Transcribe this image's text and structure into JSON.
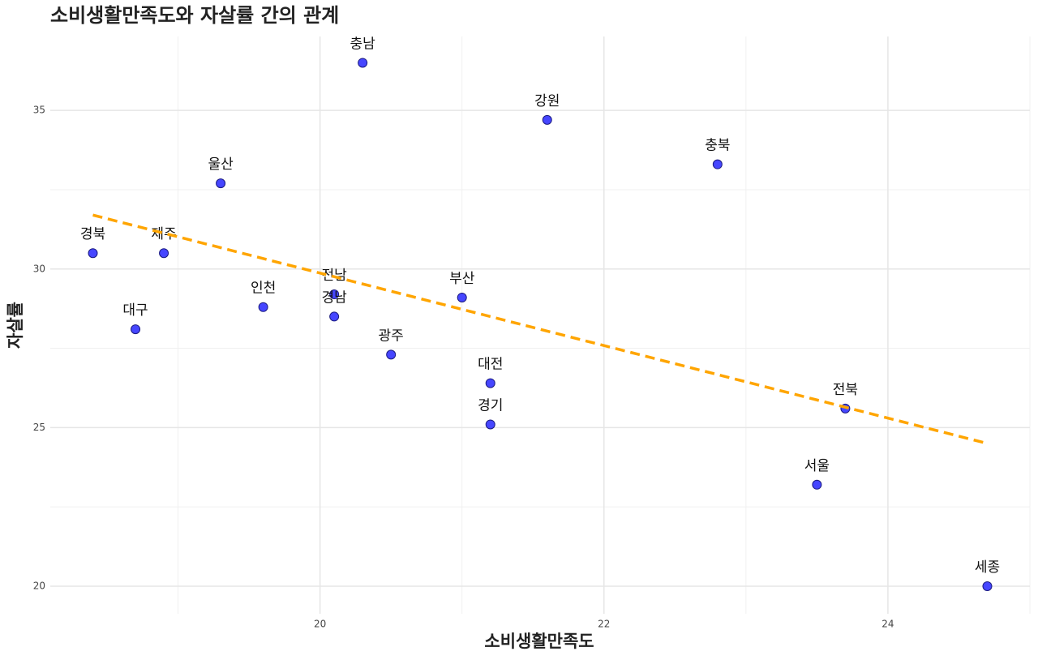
{
  "chart_data": {
    "type": "scatter",
    "title": "소비생활만족도와 자살률 간의 관계",
    "x_label": "소비생활만족도",
    "y_label": "자살률",
    "point_labels": [
      "경북",
      "대구",
      "제주",
      "울산",
      "인천",
      "충남",
      "전남",
      "경남",
      "광주",
      "부산",
      "대전",
      "경기",
      "강원",
      "충북",
      "전북",
      "서울",
      "세종"
    ],
    "x": [
      18.4,
      18.7,
      18.9,
      19.3,
      19.6,
      20.3,
      20.1,
      20.1,
      20.5,
      21.0,
      21.2,
      21.2,
      21.6,
      22.8,
      23.7,
      23.5,
      24.7
    ],
    "values": [
      30.5,
      28.1,
      30.5,
      32.7,
      28.8,
      36.5,
      29.2,
      28.5,
      27.3,
      29.1,
      26.4,
      25.1,
      34.7,
      33.3,
      25.6,
      23.2,
      20.0
    ],
    "color": "#4646ff",
    "trend": {
      "x": [
        18.4,
        24.7
      ],
      "y": [
        31.7,
        24.5
      ],
      "color": "#ffa500"
    },
    "xlim": [
      18.1,
      25.0
    ],
    "ylim": [
      19.13,
      37.33
    ],
    "xticks": [
      20,
      22,
      24
    ],
    "yticks": [
      20,
      25,
      30,
      35
    ],
    "grid": true
  }
}
